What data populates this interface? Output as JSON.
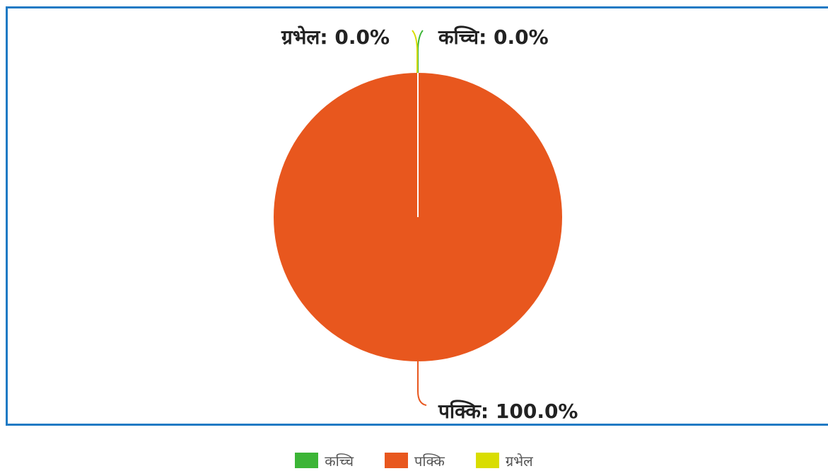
{
  "chart_data": {
    "type": "pie",
    "categories": [
      "कच्चि",
      "पक्कि",
      "ग्रभेल"
    ],
    "values": [
      0.0,
      100.0,
      0.0
    ],
    "colors": [
      "#3cb536",
      "#e8571e",
      "#d9dd00"
    ],
    "data_labels": [
      "कच्चि: 0.0%",
      "पक्कि: 100.0%",
      "ग्रभेल: 0.0%"
    ],
    "title": "",
    "legend_position": "bottom"
  }
}
